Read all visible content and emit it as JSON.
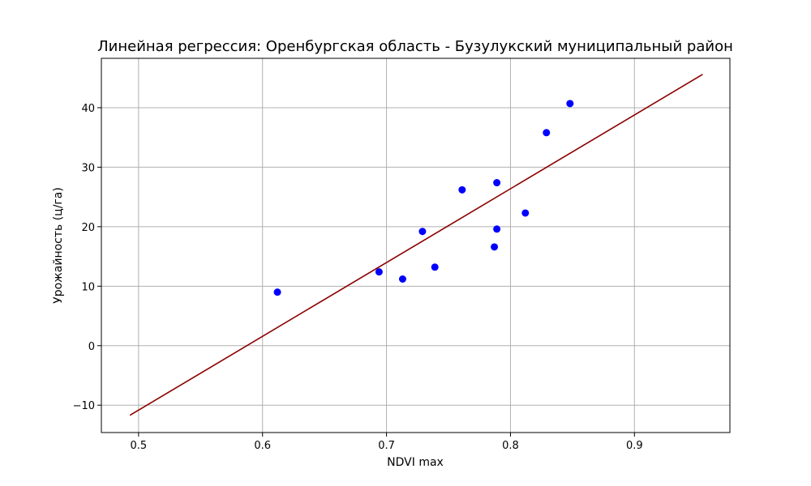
{
  "chart_data": {
    "type": "scatter",
    "title": "Линейная регрессия: Оренбургская область - Бузулукский муниципальный район",
    "xlabel": "NDVI max",
    "ylabel": "Урожайность (ц/га)",
    "xlim": [
      0.47,
      0.977
    ],
    "ylim": [
      -14.6,
      48.3
    ],
    "xticks": [
      0.5,
      0.6,
      0.7,
      0.8,
      0.9
    ],
    "xtick_labels": [
      "0.5",
      "0.6",
      "0.7",
      "0.8",
      "0.9"
    ],
    "yticks": [
      -10,
      0,
      10,
      20,
      30,
      40
    ],
    "ytick_labels": [
      "−10",
      "0",
      "10",
      "20",
      "30",
      "40"
    ],
    "grid": true,
    "series": [
      {
        "kind": "points",
        "color": "#0000ff",
        "points": [
          {
            "x": 0.612,
            "y": 9.0
          },
          {
            "x": 0.694,
            "y": 12.4
          },
          {
            "x": 0.713,
            "y": 11.2
          },
          {
            "x": 0.729,
            "y": 19.2
          },
          {
            "x": 0.739,
            "y": 13.2
          },
          {
            "x": 0.761,
            "y": 26.2
          },
          {
            "x": 0.787,
            "y": 16.6
          },
          {
            "x": 0.789,
            "y": 27.4
          },
          {
            "x": 0.789,
            "y": 19.6
          },
          {
            "x": 0.812,
            "y": 22.3
          },
          {
            "x": 0.829,
            "y": 35.8
          },
          {
            "x": 0.848,
            "y": 40.7
          }
        ]
      },
      {
        "kind": "line",
        "color": "#8b0000",
        "line": [
          {
            "x": 0.493,
            "y": -11.7
          },
          {
            "x": 0.955,
            "y": 45.6
          }
        ]
      }
    ]
  }
}
